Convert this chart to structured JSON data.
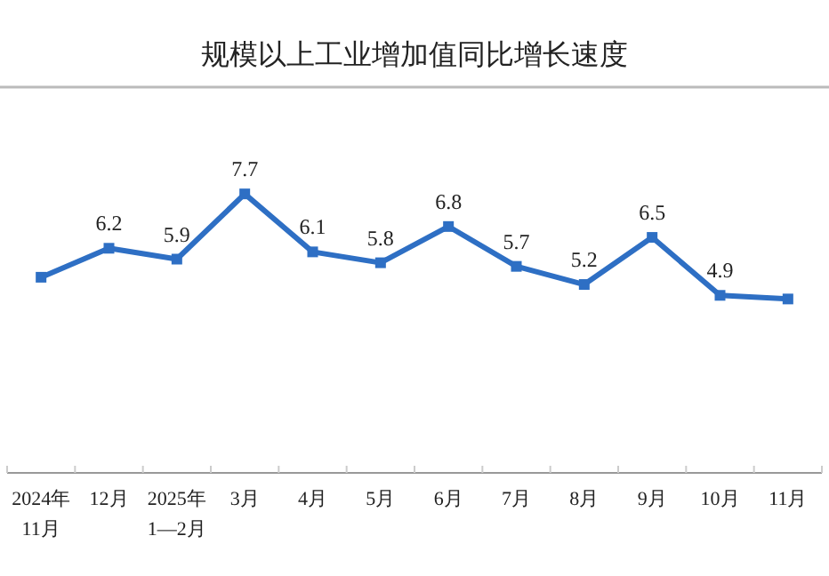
{
  "chart_data": {
    "type": "line",
    "title": "规模以上工业增加值同比增长速度",
    "categories": [
      "2024年\n11月",
      "12月",
      "2025年\n1—2月",
      "3月",
      "4月",
      "5月",
      "6月",
      "7月",
      "8月",
      "9月",
      "10月",
      "11月"
    ],
    "series": [
      {
        "color": "#2e6fc4",
        "values": [
          5.4,
          6.2,
          5.9,
          7.7,
          6.1,
          5.8,
          6.8,
          5.7,
          5.2,
          6.5,
          4.9,
          4.8
        ],
        "value_labels": [
          null,
          "6.2",
          "5.9",
          "7.7",
          "6.1",
          "5.8",
          "6.8",
          "5.7",
          "5.2",
          "6.5",
          "4.9",
          null
        ]
      }
    ],
    "marker": "square"
  }
}
